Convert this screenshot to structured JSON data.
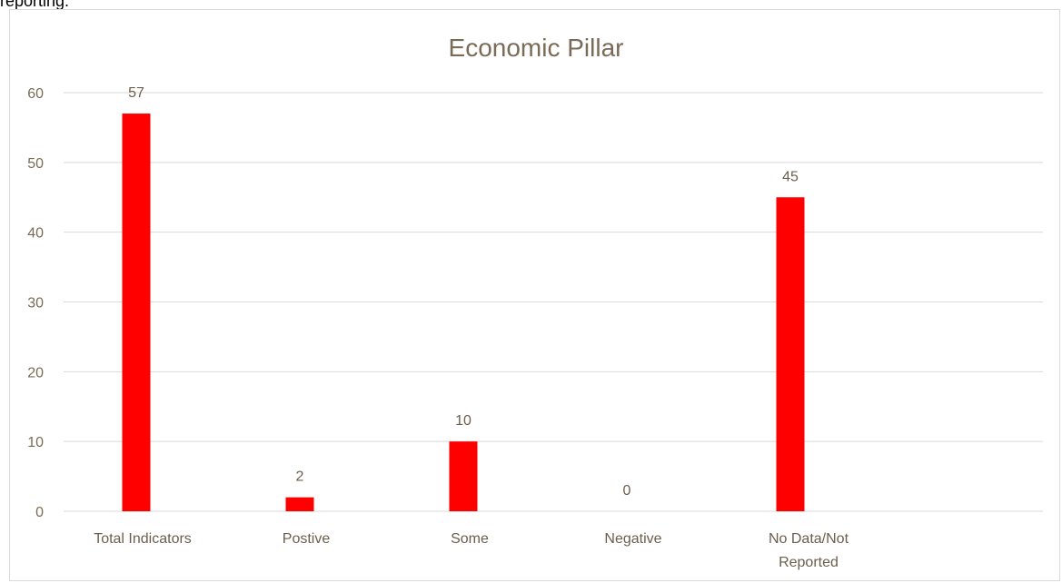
{
  "page": {
    "top_text": "reporting."
  },
  "colors": {
    "bar": "#ff0000",
    "gridline": "#d9d9d9",
    "text": "#7a6b57"
  },
  "chart_data": {
    "type": "bar",
    "title": "Economic  Pillar",
    "categories": [
      [
        "Total Indicators"
      ],
      [
        "Postive"
      ],
      [
        "Some"
      ],
      [
        "Negative"
      ],
      [
        "No Data/Not",
        "Reported"
      ]
    ],
    "values": [
      57,
      2,
      10,
      0,
      45
    ],
    "data_labels": [
      "57",
      "2",
      "10",
      "0",
      "45"
    ],
    "ylim": [
      0,
      60
    ],
    "yticks": [
      0,
      10,
      20,
      30,
      40,
      50,
      60
    ],
    "grid": true,
    "legend": false,
    "xlabel": "",
    "ylabel": ""
  }
}
